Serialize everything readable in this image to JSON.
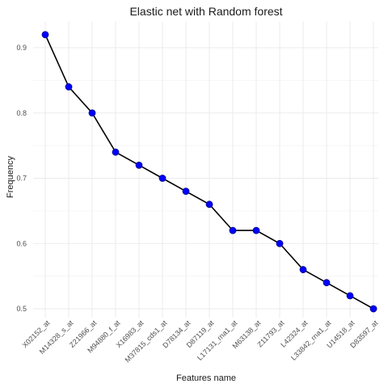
{
  "chart_data": {
    "type": "line",
    "title": "Elastic net  with Random forest",
    "xlabel": "Features name",
    "ylabel": "Frequency",
    "categories": [
      "X02152_at",
      "M14328_s_at",
      "Z21966_at",
      "M94880_f_at",
      "X16983_at",
      "M37815_cds1_at",
      "D78134_at",
      "D87119_at",
      "L17131_rna1_at",
      "M63138_at",
      "Z11793_at",
      "L42324_at",
      "L33842_rna1_at",
      "U14518_at",
      "D83597_at"
    ],
    "series": [
      {
        "values": [
          0.92,
          0.84,
          0.8,
          0.74,
          0.72,
          0.7,
          0.68,
          0.66,
          0.62,
          0.62,
          0.6,
          0.56,
          0.54,
          0.52,
          0.5
        ]
      }
    ],
    "ylim": [
      0.48,
      0.94
    ],
    "yticks": [
      0.5,
      0.6,
      0.7,
      0.8,
      0.9
    ],
    "grid": true,
    "colors": {
      "line": "#000000",
      "point": "#0000ff",
      "grid": "#ebebeb"
    }
  }
}
